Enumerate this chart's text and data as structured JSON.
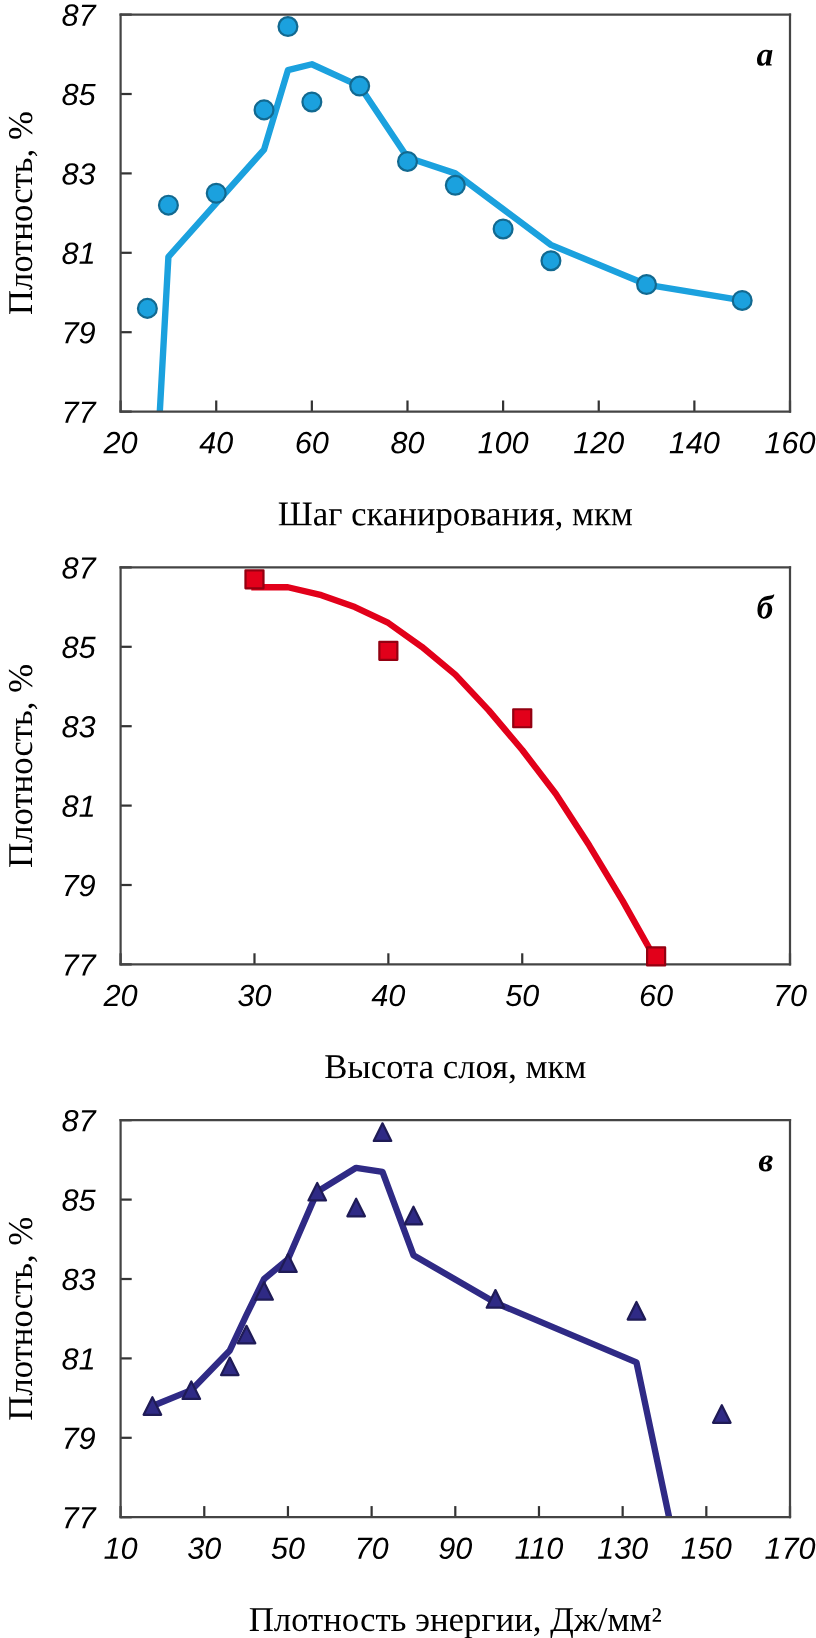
{
  "chart_data": [
    {
      "type": "scatter",
      "xlabel": "Шаг сканирования, мкм",
      "ylabel": "Плотность, %",
      "annotations": [
        "а"
      ],
      "xlim": [
        20,
        160
      ],
      "xticks": [
        20,
        40,
        60,
        80,
        100,
        120,
        140,
        160
      ],
      "ylim": [
        77,
        87
      ],
      "yticks": [
        77,
        79,
        81,
        83,
        85,
        87
      ],
      "series": [
        {
          "type": "line",
          "color": "#1ba1de",
          "line_style": "solid",
          "marker": "none",
          "x": [
            28.2,
            30,
            50,
            55,
            60,
            70,
            80,
            90,
            100,
            110,
            130,
            150
          ],
          "values": [
            77,
            80.9,
            83.6,
            85.6,
            85.75,
            85.2,
            83.4,
            83.0,
            82.1,
            81.2,
            80.2,
            79.8
          ]
        },
        {
          "color": "#1ba1de",
          "marker": "circle",
          "x": [
            25.6,
            30,
            40,
            50,
            55,
            60,
            70,
            80,
            90,
            100,
            110,
            130,
            150
          ],
          "values": [
            79.6,
            82.2,
            82.5,
            84.6,
            86.7,
            84.8,
            85.2,
            83.3,
            82.7,
            81.6,
            80.8,
            80.2,
            79.8
          ]
        }
      ]
    },
    {
      "type": "scatter",
      "xlabel": "Высота слоя, мкм",
      "ylabel": "Плотность, %",
      "annotations": [
        "б"
      ],
      "xlim": [
        20,
        70
      ],
      "xticks": [
        20,
        30,
        40,
        50,
        60,
        70
      ],
      "ylim": [
        77,
        87
      ],
      "yticks": [
        77,
        79,
        81,
        83,
        85,
        87
      ],
      "series": [
        {
          "type": "line",
          "color": "#e2001a",
          "line_style": "solid",
          "marker": "none",
          "x": [
            30,
            32.5,
            35,
            37.5,
            40,
            42.5,
            45,
            47.5,
            50,
            52.5,
            55,
            57.5,
            60
          ],
          "values": [
            86.5,
            86.5,
            86.3,
            86.0,
            85.6,
            85.0,
            84.3,
            83.4,
            82.4,
            81.3,
            80.0,
            78.6,
            77.1
          ]
        },
        {
          "color": "#e2001a",
          "marker": "square",
          "x": [
            30,
            40,
            50,
            60
          ],
          "values": [
            86.7,
            84.9,
            83.2,
            77.2
          ]
        }
      ]
    },
    {
      "type": "scatter",
      "xlabel": "Плотность энергии, Дж/мм²",
      "ylabel": "Плотность, %",
      "annotations": [
        "в"
      ],
      "xlim": [
        10,
        170
      ],
      "xticks": [
        10,
        30,
        50,
        70,
        90,
        110,
        130,
        150,
        170
      ],
      "ylim": [
        77,
        87
      ],
      "yticks": [
        77,
        79,
        81,
        83,
        85,
        87
      ],
      "series": [
        {
          "type": "line",
          "color": "#2f2a85",
          "line_style": "solid",
          "marker": "none",
          "x": [
            17.6,
            26.9,
            36.1,
            40.1,
            44.3,
            50,
            57,
            66.3,
            72.6,
            80,
            99.6,
            133.3,
            141.1
          ],
          "values": [
            79.8,
            80.2,
            81.2,
            82.1,
            83.0,
            83.5,
            85.2,
            85.8,
            85.7,
            83.6,
            82.4,
            80.9,
            77
          ]
        },
        {
          "color": "#2f2a85",
          "marker": "triangle",
          "x": [
            17.6,
            26.9,
            36.1,
            40.1,
            44.3,
            50,
            57,
            66.3,
            72.6,
            80,
            99.6,
            133.3,
            153.7
          ],
          "values": [
            79.8,
            80.2,
            80.8,
            81.6,
            82.7,
            83.4,
            85.2,
            84.8,
            86.7,
            84.6,
            82.5,
            82.2,
            79.6
          ]
        }
      ]
    }
  ]
}
